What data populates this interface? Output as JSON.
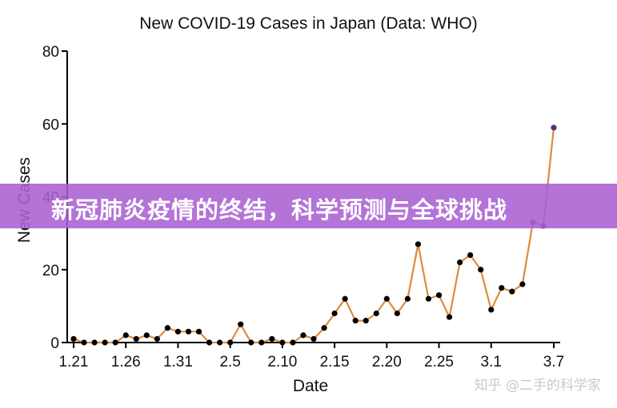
{
  "banner": {
    "text": "新冠肺炎疫情的终结，科学预测与全球挑战"
  },
  "watermark": {
    "text": "知乎 @二手的科学家"
  },
  "colors": {
    "line": "#E08A3C",
    "marker": "#000000",
    "highlight_marker": "#5B2A86",
    "banner": "#A860D2"
  },
  "chart_data": {
    "type": "line",
    "title": "New COVID-19 Cases in Japan (Data: WHO)",
    "xlabel": "Date",
    "ylabel": "New Cases",
    "ylim": [
      0,
      80
    ],
    "yticks": [
      0,
      20,
      40,
      60,
      80
    ],
    "xticks": [
      {
        "label": "1.21",
        "index": 0
      },
      {
        "label": "1.26",
        "index": 5
      },
      {
        "label": "1.31",
        "index": 10
      },
      {
        "label": "2.5",
        "index": 15
      },
      {
        "label": "2.10",
        "index": 20
      },
      {
        "label": "2.15",
        "index": 25
      },
      {
        "label": "2.20",
        "index": 30
      },
      {
        "label": "2.25",
        "index": 35
      },
      {
        "label": "3.1",
        "index": 40
      },
      {
        "label": "3.7",
        "index": 46
      }
    ],
    "x": [
      "1.21",
      "1.22",
      "1.23",
      "1.24",
      "1.25",
      "1.26",
      "1.27",
      "1.28",
      "1.29",
      "1.30",
      "1.31",
      "2.1",
      "2.2",
      "2.3",
      "2.4",
      "2.5",
      "2.6",
      "2.7",
      "2.8",
      "2.9",
      "2.10",
      "2.11",
      "2.12",
      "2.13",
      "2.14",
      "2.15",
      "2.16",
      "2.17",
      "2.18",
      "2.19",
      "2.20",
      "2.21",
      "2.22",
      "2.23",
      "2.24",
      "2.25",
      "2.26",
      "2.27",
      "2.28",
      "2.29",
      "3.1",
      "3.2",
      "3.3",
      "3.4",
      "3.5",
      "3.6",
      "3.7"
    ],
    "series": [
      {
        "values": [
          1,
          0,
          0,
          0,
          0,
          2,
          1,
          2,
          1,
          4,
          3,
          3,
          3,
          0,
          0,
          0,
          5,
          0,
          0,
          1,
          0,
          0,
          2,
          1,
          4,
          8,
          12,
          6,
          6,
          8,
          12,
          8,
          12,
          27,
          12,
          13,
          7,
          22,
          24,
          20,
          9,
          15,
          14,
          16,
          33,
          32,
          59
        ]
      }
    ],
    "highlighted_points": [
      44,
      45,
      46
    ],
    "grid": false,
    "legend": "none"
  }
}
